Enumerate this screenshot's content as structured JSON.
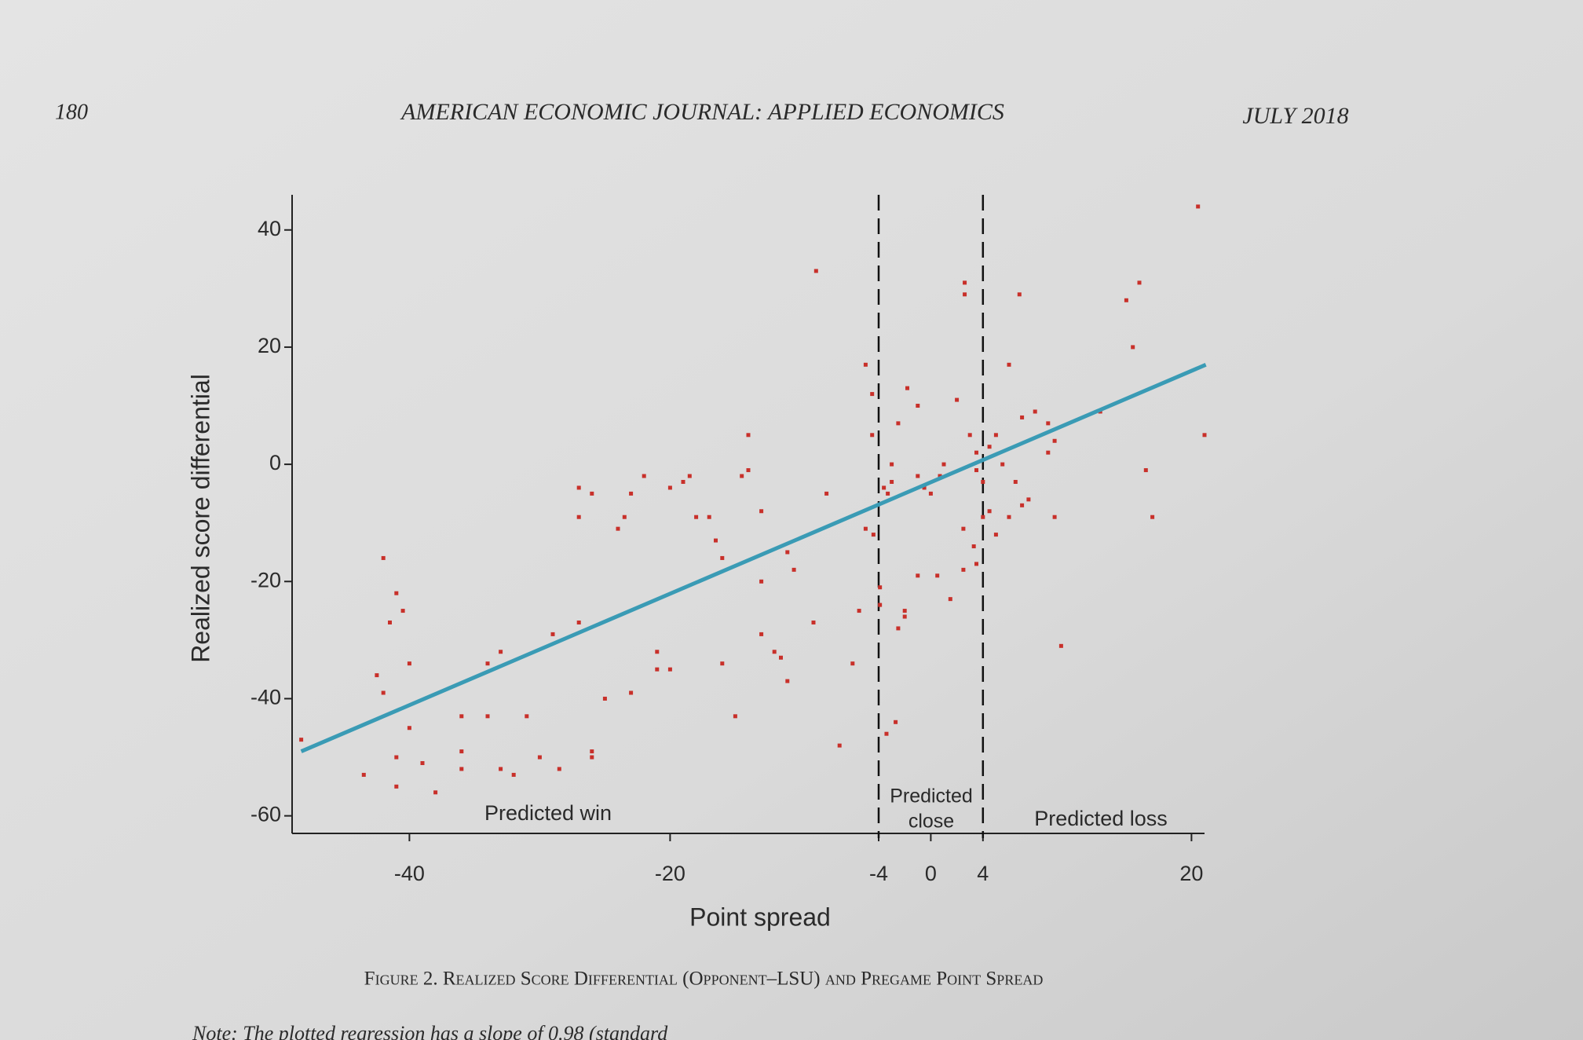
{
  "header": {
    "page_number": "180",
    "journal": "AMERICAN ECONOMIC JOURNAL: APPLIED ECONOMICS",
    "date": "JULY 2018"
  },
  "caption": "Figure 2. Realized Score Differential (Opponent–LSU) and Pregame Point Spread",
  "note": "Note: The plotted regression has a slope of 0.98 (standard",
  "chart_data": {
    "type": "scatter",
    "x_label": "Point spread",
    "y_label": "Realized score differential",
    "xlim": [
      -49,
      21
    ],
    "ylim": [
      -63,
      46
    ],
    "xticks": [
      -40,
      -20,
      -4,
      0,
      4,
      20
    ],
    "yticks": [
      40,
      20,
      0,
      -20,
      -40,
      -60
    ],
    "vlines": [
      -4,
      4
    ],
    "annotations": [
      "Predicted win",
      "Predicted",
      "close",
      "Predicted loss"
    ],
    "points": {
      "color": "#c8302a",
      "x": [
        -48.3,
        -42,
        -42.5,
        -42,
        -41,
        -41.5,
        -40.5,
        -40,
        -40,
        -41,
        -41,
        -39,
        -38,
        -43.5,
        -36,
        -36,
        -36,
        -34,
        -34,
        -33,
        -33,
        -32,
        -31,
        -30,
        -29,
        -28.5,
        -27,
        -27,
        -27,
        -26,
        -26,
        -25,
        -23,
        -24,
        -23.5,
        -23,
        -22,
        -21,
        -21,
        -20,
        -20,
        -19,
        -18.5,
        -18,
        -17,
        -16.5,
        -16,
        -16,
        -15,
        -14.5,
        -14,
        -14,
        -13,
        -13,
        -13,
        -12,
        -11.5,
        -11,
        -11,
        -10.5,
        -9,
        -8.8,
        -8,
        -7,
        -6,
        -5.5,
        -5,
        -5,
        -4.5,
        -4.5,
        -3.6,
        -3.3,
        -3,
        -3,
        -2.5,
        -2,
        -2,
        -2.5,
        -1.8,
        -1,
        -1,
        -0.5,
        0,
        0.7,
        1,
        2,
        2.5,
        3.3,
        3.5,
        2.6,
        2.6,
        6.8,
        4,
        4.5,
        5,
        5.5,
        6,
        6.5,
        7,
        7.5,
        9,
        9,
        9.5,
        10,
        6,
        7,
        8,
        9.5,
        13,
        15,
        15.5,
        16,
        16.5,
        17,
        20.5,
        21,
        3,
        3.5,
        3.5,
        4,
        4.5,
        5,
        -3.4,
        -2.7,
        -3.9,
        -3.9,
        -4.4,
        -1,
        0.5,
        1.5,
        2.5,
        -26
      ],
      "y": [
        -47,
        -16,
        -36,
        -39,
        -22,
        -27,
        -25,
        -34,
        -45,
        -50,
        -55,
        -51,
        -56,
        -53,
        -43,
        -49,
        -52,
        -43,
        -34,
        -32,
        -52,
        -53,
        -43,
        -50,
        -29,
        -52,
        -4,
        -9,
        -27,
        -49,
        -50,
        -40,
        -39,
        -11,
        -9,
        -5,
        -2,
        -32,
        -35,
        -35,
        -4,
        -3,
        -2,
        -9,
        -9,
        -13,
        -16,
        -34,
        -43,
        -2,
        -1,
        5,
        -8,
        -20,
        -29,
        -32,
        -33,
        -15,
        -37,
        -18,
        -27,
        33,
        -5,
        -48,
        -34,
        -25,
        17,
        -11,
        12,
        5,
        -4,
        -5,
        0,
        -3,
        -28,
        -26,
        -25,
        7,
        13,
        10,
        -2,
        -4,
        -5,
        -2,
        0,
        11,
        -11,
        -14,
        -17,
        29,
        31,
        29,
        -9,
        3,
        5,
        0,
        -9,
        -3,
        -7,
        -6,
        2,
        7,
        -9,
        -31,
        17,
        8,
        9,
        4,
        9,
        28,
        20,
        31,
        -1,
        -9,
        44,
        5,
        5,
        2,
        -1,
        -3,
        -8,
        -12,
        -46,
        -44,
        -24,
        -21,
        -12,
        -19,
        -19,
        -23,
        -18,
        -5
      ]
    },
    "fit": {
      "color": "#3a9bb5",
      "x": [
        -48.3,
        21.1
      ],
      "y": [
        -49,
        17
      ]
    }
  }
}
